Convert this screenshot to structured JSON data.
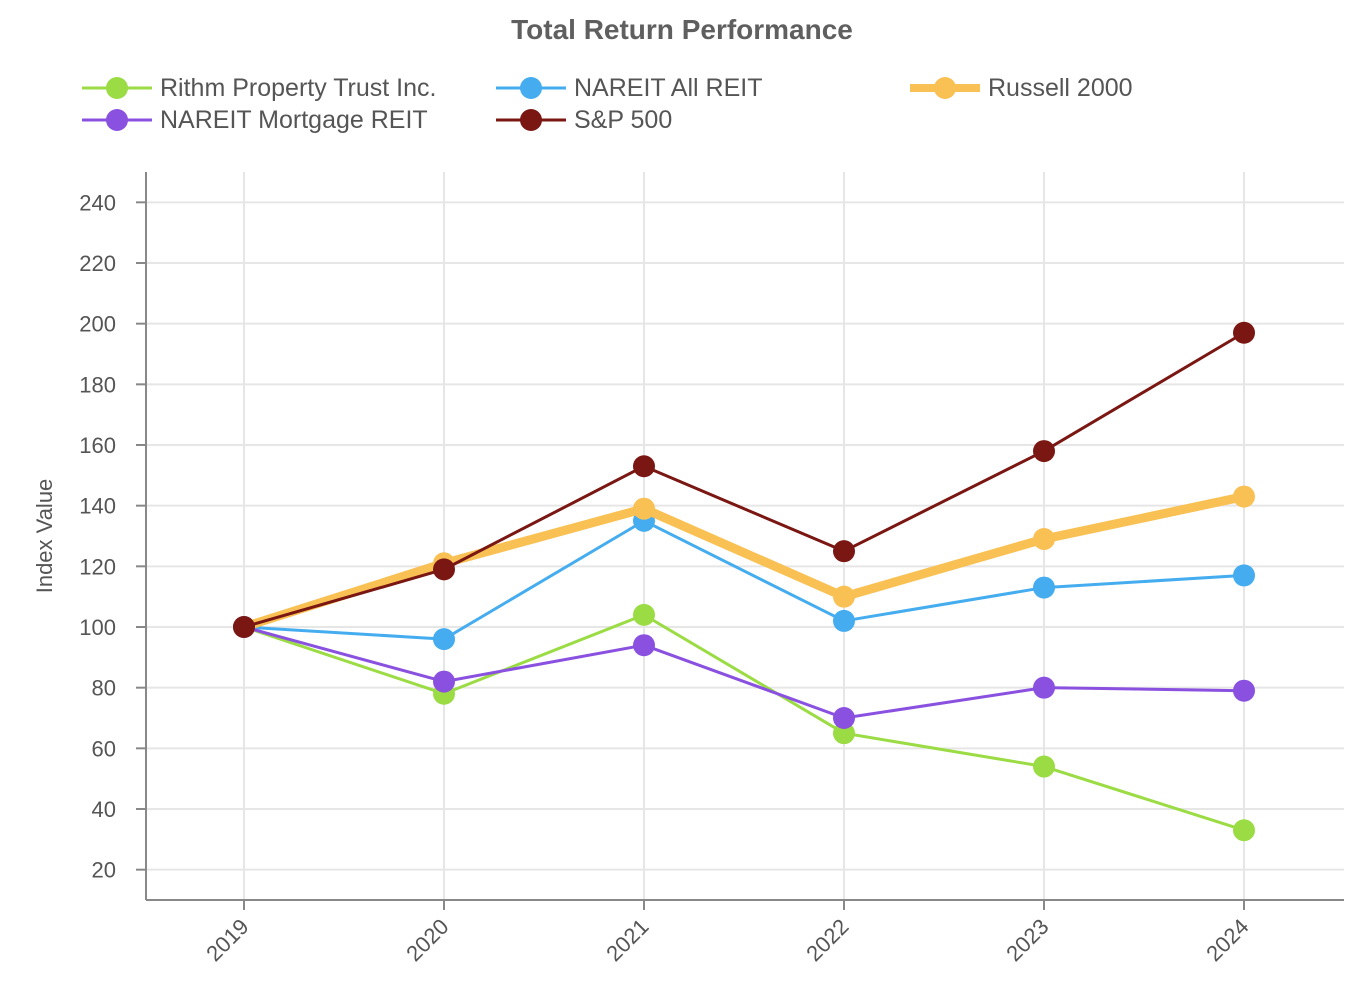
{
  "chart_data": {
    "type": "line",
    "title": "Total Return Performance",
    "xlabel": "",
    "ylabel": "Index Value",
    "categories": [
      "2019",
      "2020",
      "2021",
      "2022",
      "2023",
      "2024"
    ],
    "ylim": [
      10,
      250
    ],
    "yticks": [
      20,
      40,
      60,
      80,
      100,
      120,
      140,
      160,
      180,
      200,
      220,
      240
    ],
    "grid": true,
    "legend_position": "top",
    "series": [
      {
        "name": "Rithm Property Trust Inc.",
        "color": "#9bdc44",
        "emphasis": false,
        "values": [
          100,
          78,
          104,
          65,
          54,
          33
        ]
      },
      {
        "name": "NAREIT All REIT",
        "color": "#45adef",
        "emphasis": false,
        "values": [
          100,
          96,
          135,
          102,
          113,
          117
        ]
      },
      {
        "name": "Russell 2000",
        "color": "#f9c154",
        "emphasis": true,
        "values": [
          100,
          121,
          139,
          110,
          129,
          143
        ]
      },
      {
        "name": "NAREIT Mortgage REIT",
        "color": "#8a51e0",
        "emphasis": false,
        "values": [
          100,
          82,
          94,
          70,
          80,
          79
        ]
      },
      {
        "name": "S&P 500",
        "color": "#7a1712",
        "emphasis": false,
        "values": [
          100,
          119,
          153,
          125,
          158,
          197
        ]
      }
    ]
  }
}
